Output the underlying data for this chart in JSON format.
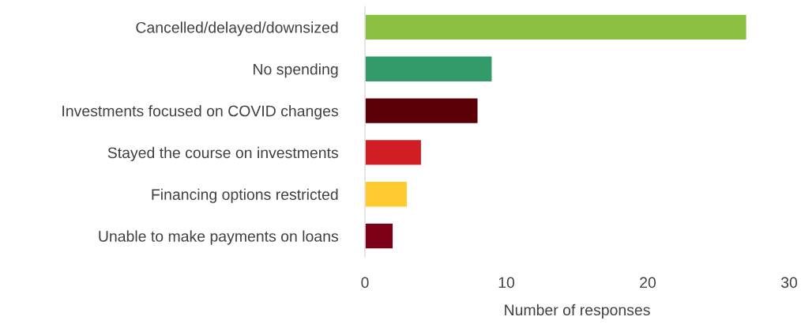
{
  "chart_data": {
    "type": "bar",
    "orientation": "horizontal",
    "xlabel": "Number of responses",
    "categories": [
      "Cancelled/delayed/downsized",
      "No spending",
      "Investments focused on COVID changes",
      "Stayed the course on investments",
      "Financing options restricted",
      "Unable to make payments on loans"
    ],
    "values": [
      27,
      9,
      8,
      4,
      3,
      2
    ],
    "colors": [
      "#8cc043",
      "#339a6a",
      "#5c0008",
      "#d11e24",
      "#ffcb30",
      "#7b0018"
    ],
    "xlim": [
      0,
      30
    ],
    "xticks": [
      0,
      10,
      20,
      30
    ],
    "grid": false,
    "legend": false
  }
}
